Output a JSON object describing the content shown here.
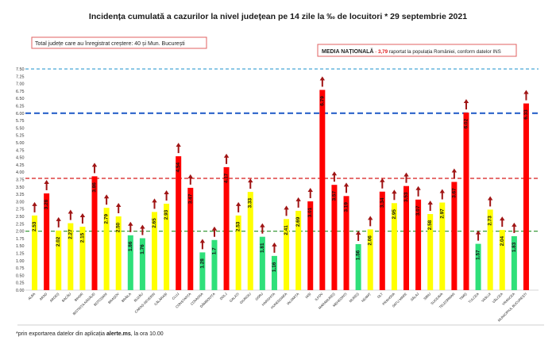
{
  "title": "Incidența cumulată a cazurilor la nivel județean pe 14 zile la ‰ de locuitori * 29 septembrie 2021",
  "info_box": "Total județe care au înregistrat creștere:  40 și Mun. București",
  "national": {
    "label": "MEDIA NAȚIONALĂ",
    "dash": " - ",
    "value": "3,79",
    "suffix": " raportat la populația României, conform datelor INS"
  },
  "footnote": {
    "prefix": "*prin exportarea datelor din aplicația ",
    "bold": "alerte.ms",
    "suffix": ", la ora 10.00"
  },
  "colors": {
    "red": "#ff0000",
    "yellow": "#ffff00",
    "green": "#2fe07a",
    "arrow": "#a01515",
    "ref_red": "#d81b1b",
    "ref_blue": "#2a62c9",
    "ref_lightblue": "#48a8d6",
    "ref_green": "#3c9a3c"
  },
  "chart_data": {
    "type": "bar",
    "title": "Incidența cumulată a cazurilor la nivel județean pe 14 zile la ‰ de locuitori * 29 septembrie 2021",
    "categories": [
      "ALBA",
      "ARAD",
      "ARGEȘ",
      "BACĂU",
      "BIHOR",
      "BISTRIȚA-NĂSĂUD",
      "BOTOȘANI",
      "BRAȘOV",
      "BRĂILA",
      "BUZĂU",
      "CARAȘ-SEVERIN",
      "CĂLĂRAȘI",
      "CLUJ",
      "CONSTANȚA",
      "COVASNA",
      "DÂMBOVIȚA",
      "DOLJ",
      "GALAȚI",
      "GIURGIU",
      "GORJ",
      "HARGHITA",
      "HUNEDOARA",
      "IALOMIȚA",
      "IAȘI",
      "ILFOV",
      "MARAMUREȘ",
      "MEHEDINȚI",
      "MUREȘ",
      "NEAMȚ",
      "OLT",
      "PRAHOVA",
      "SATU MARE",
      "SĂLAJ",
      "SIBIU",
      "SUCEAVA",
      "TELEORMAN",
      "TIMIȘ",
      "TULCEA",
      "VASLUI",
      "VÂLCEA",
      "VRANCEA",
      "MUNICIPIUL BUCUREȘTI"
    ],
    "values": [
      2.53,
      3.28,
      2.02,
      2.27,
      2.15,
      3.86,
      2.79,
      2.5,
      1.86,
      1.76,
      2.65,
      2.93,
      4.54,
      3.47,
      1.28,
      1.7,
      4.17,
      2.53,
      3.33,
      1.81,
      1.16,
      2.41,
      2.69,
      3.01,
      6.79,
      3.57,
      3.19,
      1.56,
      2.06,
      3.34,
      2.95,
      3.53,
      3.07,
      2.58,
      2.97,
      3.67,
      6.02,
      1.57,
      2.73,
      2.04,
      1.83,
      6.33
    ],
    "labels": [
      "2.53",
      "3.28",
      "2.02",
      "2.27",
      "2.15",
      "3.86",
      "2.79",
      "2.50",
      "1.86",
      "1.76",
      "2.65",
      "2.93",
      "4.54",
      "3.47",
      "1.28",
      "1.7",
      "4.17",
      "2.53",
      "3.33",
      "1.81",
      "1.16",
      "2.41",
      "2.69",
      "3.01",
      "6.79",
      "3.57",
      "3.19",
      "1.56",
      "2.06",
      "3.34",
      "2.95",
      "3.53",
      "3.07",
      "2.58",
      "2.97",
      "3.67",
      "6.02",
      "1.57",
      "2.73",
      "2.04",
      "1.83",
      "6.33"
    ],
    "bar_colors": [
      "yellow",
      "red",
      "yellow",
      "yellow",
      "yellow",
      "red",
      "yellow",
      "yellow",
      "green",
      "green",
      "yellow",
      "yellow",
      "red",
      "red",
      "green",
      "green",
      "red",
      "yellow",
      "yellow",
      "green",
      "green",
      "yellow",
      "yellow",
      "red",
      "red",
      "red",
      "red",
      "green",
      "yellow",
      "red",
      "yellow",
      "red",
      "red",
      "yellow",
      "yellow",
      "red",
      "red",
      "green",
      "yellow",
      "yellow",
      "green",
      "red"
    ],
    "y_ticks": [
      "0.00",
      "0.25",
      "0.50",
      "0.75",
      "1.00",
      "1.25",
      "1.50",
      "1.75",
      "2.00",
      "2.25",
      "2.50",
      "2.75",
      "3.00",
      "3.25",
      "3.50",
      "3.75",
      "4.00",
      "4.25",
      "4.50",
      "4.75",
      "5.00",
      "5.25",
      "5.50",
      "5.75",
      "6.00",
      "6.25",
      "6.50",
      "6.75",
      "7.00",
      "7.25",
      "7.50"
    ],
    "ylim": [
      0,
      7.5
    ],
    "reference_lines": [
      {
        "value": 7.5,
        "color": "lightblue",
        "style": "dashed"
      },
      {
        "value": 6.0,
        "color": "blue",
        "style": "dashed"
      },
      {
        "value": 3.79,
        "color": "red",
        "style": "dashed"
      },
      {
        "value": 2.0,
        "color": "green",
        "style": "dashed"
      }
    ],
    "trend_arrows": "up on every county",
    "grid": false,
    "legend": "none"
  }
}
